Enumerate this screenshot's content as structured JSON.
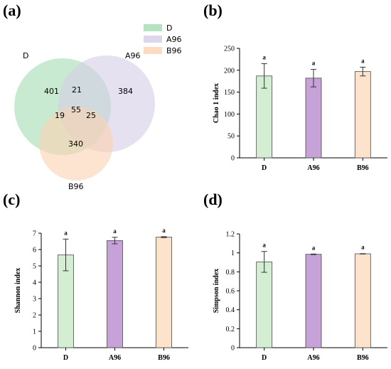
{
  "panels": {
    "a": "(a)",
    "b": "(b)",
    "c": "(c)",
    "d": "(d)"
  },
  "colors": {
    "D": "#d4eed4",
    "A96": "#c6a2d8",
    "B96": "#fde2cc",
    "bar_stroke": "#4a4a4a",
    "venn_D": "#a3dcb0",
    "venn_A96": "#d5cde6",
    "venn_B96": "#fbd2b0"
  },
  "chart_data": [
    {
      "type": "venn",
      "sets": [
        "D",
        "A96",
        "B96"
      ],
      "legend": [
        "D",
        "A96",
        "B96"
      ],
      "regions": {
        "D_only": 401,
        "A96_only": 384,
        "B96_only": 340,
        "D_A96": 21,
        "D_B96": 19,
        "A96_B96": 25,
        "D_A96_B96": 55
      }
    },
    {
      "type": "bar",
      "panel": "b",
      "categories": [
        "D",
        "A96",
        "B96"
      ],
      "values": [
        187,
        182,
        197
      ],
      "errors": [
        28,
        20,
        10
      ],
      "significance": [
        "a",
        "a",
        "a"
      ],
      "ylabel": "Chao 1 index",
      "ylim": [
        0,
        250
      ],
      "yticks": [
        0,
        50,
        100,
        150,
        200,
        250
      ]
    },
    {
      "type": "bar",
      "panel": "c",
      "categories": [
        "D",
        "A96",
        "B96"
      ],
      "values": [
        5.67,
        6.55,
        6.76
      ],
      "errors": [
        0.97,
        0.2,
        0.03
      ],
      "significance": [
        "a",
        "a",
        "a"
      ],
      "ylabel": "Shannon index",
      "ylim": [
        0,
        7
      ],
      "yticks": [
        0,
        1,
        2,
        3,
        4,
        5,
        6,
        7
      ]
    },
    {
      "type": "bar",
      "panel": "d",
      "categories": [
        "D",
        "A96",
        "B96"
      ],
      "values": [
        0.905,
        0.985,
        0.99
      ],
      "errors": [
        0.11,
        0.003,
        0.002
      ],
      "significance": [
        "a",
        "a",
        "a"
      ],
      "ylabel": "Simpson index",
      "ylim": [
        0,
        1.2
      ],
      "yticks": [
        "0",
        "0.2",
        "0.4",
        "0.6",
        "0.8",
        "1",
        "1.2"
      ]
    }
  ]
}
